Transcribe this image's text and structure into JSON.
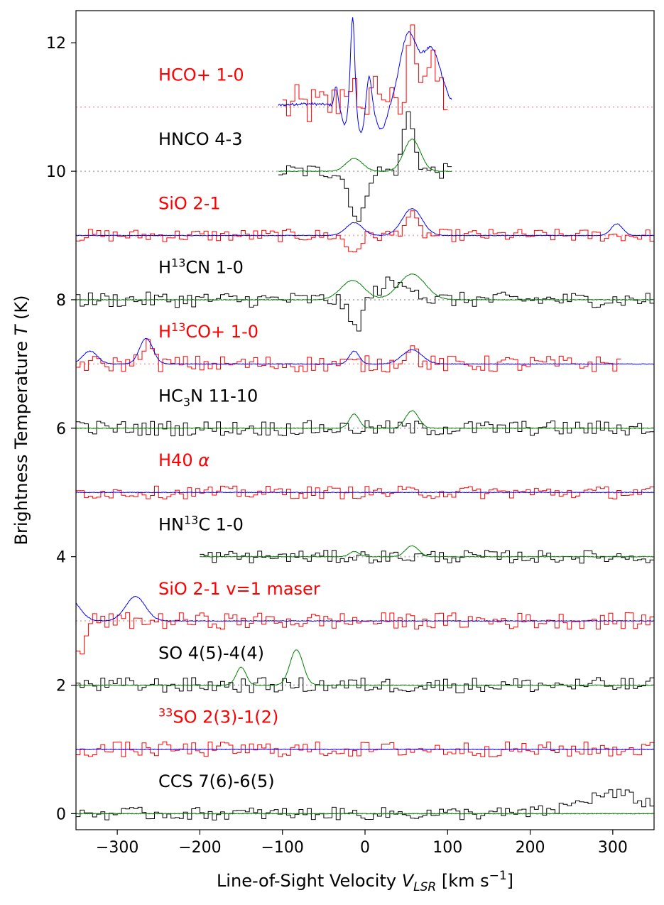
{
  "chart_data": {
    "type": "line",
    "xlabel": "Line-of-Sight Velocity",
    "xlabel_symbol": "V",
    "xlabel_symbol_sub": "LSR",
    "xlabel_unit_a": " [km s",
    "xlabel_unit_sup": "−1",
    "xlabel_unit_b": "]",
    "ylabel": "Brightness Temperature",
    "ylabel_symbol": "T",
    "ylabel_unit": " (K)",
    "xlim": [
      -350,
      350
    ],
    "ylim": [
      -0.25,
      12.5
    ],
    "xticks": [
      -300,
      -200,
      -100,
      0,
      100,
      200,
      300
    ],
    "xtick_labels": [
      "−300",
      "−200",
      "−100",
      "0",
      "100",
      "200",
      "300"
    ],
    "yticks": [
      0,
      2,
      4,
      6,
      8,
      10,
      12
    ],
    "ytick_labels": [
      "0",
      "2",
      "4",
      "6",
      "8",
      "10",
      "12"
    ],
    "grid": false,
    "legend": "none",
    "colors": {
      "obs_red": "#ff0000",
      "obs_black": "#000000",
      "model_blue": "#0000ff",
      "model_green": "#008000",
      "baseline_red": "#ffb0b0",
      "baseline_grey": "#bbbbbb"
    },
    "series": [
      {
        "label": [
          {
            "t": "HCO+ 1-0"
          }
        ],
        "offset": 11,
        "color": "red",
        "obs_range": [
          -100,
          100
        ],
        "noise": 0.35,
        "obs_extra": "hco",
        "model_range": [
          -105,
          105
        ],
        "model_kind": "hco"
      },
      {
        "label": [
          {
            "t": "HNCO 4-3"
          }
        ],
        "offset": 10,
        "color": "black",
        "obs_range": [
          -105,
          105
        ],
        "noise": 0.12,
        "obs_comps": [
          [
            -15,
            8,
            -0.4
          ],
          [
            -5,
            6,
            -0.6
          ],
          [
            55,
            7,
            0.6
          ],
          [
            50,
            4,
            0.4
          ]
        ],
        "model_range": [
          -105,
          105
        ],
        "model_comps": [
          [
            -13,
            10,
            0.2
          ],
          [
            57,
            10,
            0.5
          ]
        ]
      },
      {
        "label": [
          {
            "t": "SiO 2-1"
          }
        ],
        "offset": 9,
        "color": "red",
        "obs_range": [
          -350,
          350
        ],
        "noise": 0.1,
        "obs_comps": [
          [
            -15,
            8,
            -0.25
          ],
          [
            55,
            8,
            0.3
          ]
        ],
        "model_range": [
          -350,
          350
        ],
        "model_comps": [
          [
            -13,
            10,
            0.2
          ],
          [
            57,
            12,
            0.42
          ],
          [
            305,
            7,
            0.18
          ]
        ]
      },
      {
        "label": [
          {
            "t": "H"
          },
          {
            "t": "13",
            "sup": true
          },
          {
            "t": "CN 1-0"
          }
        ],
        "offset": 8,
        "color": "black",
        "obs_range": [
          -350,
          350
        ],
        "noise": 0.12,
        "obs_comps": [
          [
            -12,
            8,
            -0.45
          ],
          [
            30,
            15,
            0.25
          ],
          [
            58,
            8,
            0.2
          ]
        ],
        "model_range": [
          -350,
          350
        ],
        "model_comps": [
          [
            -15,
            14,
            0.3
          ],
          [
            57,
            16,
            0.4
          ]
        ]
      },
      {
        "label": [
          {
            "t": "H"
          },
          {
            "t": "13",
            "sup": true
          },
          {
            "t": "CO+ 1-0"
          }
        ],
        "offset": 7,
        "color": "red",
        "obs_range": [
          -350,
          310
        ],
        "noise": 0.13,
        "obs_comps": [
          [
            -265,
            6,
            0.35
          ],
          [
            55,
            8,
            0.25
          ]
        ],
        "model_range": [
          -350,
          350
        ],
        "model_comps": [
          [
            -333,
            9,
            0.2
          ],
          [
            -265,
            8,
            0.4
          ],
          [
            -13,
            6,
            0.2
          ],
          [
            57,
            12,
            0.22
          ]
        ]
      },
      {
        "label": [
          {
            "t": "HC"
          },
          {
            "t": "3",
            "sub": true
          },
          {
            "t": "N 11-10"
          }
        ],
        "offset": 6,
        "color": "black",
        "obs_range": [
          -350,
          350
        ],
        "noise": 0.12,
        "obs_comps": [],
        "model_range": [
          -350,
          350
        ],
        "model_comps": [
          [
            -13,
            6,
            0.22
          ],
          [
            57,
            8,
            0.27
          ]
        ]
      },
      {
        "label": [
          {
            "t": "H40 "
          },
          {
            "t": "α",
            "italic": true
          }
        ],
        "offset": 5,
        "color": "red",
        "obs_range": [
          -350,
          350
        ],
        "noise": 0.1,
        "obs_comps": [],
        "model_range": [
          -350,
          350
        ],
        "model_comps": []
      },
      {
        "label": [
          {
            "t": "HN"
          },
          {
            "t": "13",
            "sup": true
          },
          {
            "t": "C 1-0"
          }
        ],
        "offset": 4,
        "color": "black",
        "obs_range": [
          -200,
          350
        ],
        "noise": 0.1,
        "obs_comps": [],
        "model_range": [
          -200,
          350
        ],
        "model_comps": [
          [
            -13,
            6,
            0.08
          ],
          [
            57,
            8,
            0.17
          ]
        ]
      },
      {
        "label": [
          {
            "t": "SiO 2-1 v=1 maser"
          }
        ],
        "offset": 3,
        "color": "red",
        "obs_range": [
          -350,
          350
        ],
        "noise": 0.13,
        "obs_comps": [
          [
            -345,
            5,
            -0.6
          ]
        ],
        "model_range": [
          -350,
          350
        ],
        "model_comps": [
          [
            -358,
            12,
            0.35
          ],
          [
            -278,
            12,
            0.38
          ]
        ]
      },
      {
        "label": [
          {
            "t": "SO 4(5)-4(4)"
          }
        ],
        "offset": 2,
        "color": "black",
        "obs_range": [
          -350,
          350
        ],
        "noise": 0.12,
        "obs_comps": [],
        "model_range": [
          -350,
          350
        ],
        "model_comps": [
          [
            -150,
            6,
            0.28
          ],
          [
            -83,
            8,
            0.55
          ]
        ]
      },
      {
        "label": [
          {
            "t": "33",
            "sup": true
          },
          {
            "t": "SO 2(3)-1(2)"
          }
        ],
        "offset": 1,
        "color": "red",
        "obs_range": [
          -350,
          350
        ],
        "noise": 0.12,
        "obs_comps": [],
        "model_range": [
          -350,
          350
        ],
        "model_comps": []
      },
      {
        "label": [
          {
            "t": "CCS 7(6)-6(5)"
          }
        ],
        "offset": 0,
        "color": "black",
        "obs_range": [
          -350,
          350
        ],
        "noise": 0.1,
        "obs_comps": [
          [
            300,
            40,
            0.3
          ]
        ],
        "model_range": [
          -350,
          350
        ],
        "model_comps": []
      }
    ]
  }
}
